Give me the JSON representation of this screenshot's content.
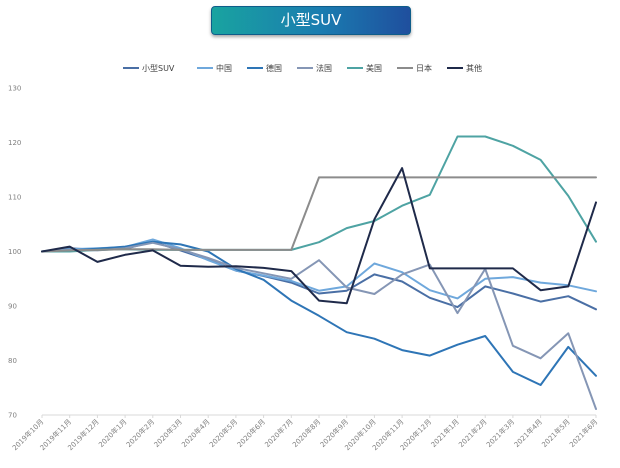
{
  "chart_data": {
    "type": "line",
    "title": "小型SUV",
    "xlabel": "",
    "ylabel": "",
    "ylim": [
      70,
      130
    ],
    "yticks": [
      70,
      80,
      90,
      100,
      110,
      120,
      130
    ],
    "grid": false,
    "legend_position": "top-center",
    "categories": [
      "2019年10月",
      "2019年11月",
      "2019年12月",
      "2020年1月",
      "2020年2月",
      "2020年3月",
      "2020年4月",
      "2020年5月",
      "2020年6月",
      "2020年7月",
      "2020年8月",
      "2020年9月",
      "2020年10月",
      "2020年11月",
      "2020年12月",
      "2021年1月",
      "2021年2月",
      "2021年3月",
      "2021年4月",
      "2021年5月",
      "2021年6月"
    ],
    "series": [
      {
        "name": "小型SUV",
        "color": "#4a6fa5",
        "values": [
          100,
          100.6,
          100.3,
          100.5,
          101.8,
          100.2,
          98.5,
          96.5,
          95.5,
          94.3,
          92.3,
          92.8,
          95.8,
          94.5,
          91.5,
          89.8,
          93.6,
          92.3,
          90.8,
          91.8,
          89.4
        ]
      },
      {
        "name": "中国",
        "color": "#6fa8dc",
        "values": [
          100,
          100.4,
          100.6,
          100.8,
          102.2,
          100.6,
          98.4,
          96.5,
          95.6,
          94.6,
          92.8,
          93.6,
          97.8,
          96.2,
          92.9,
          91.4,
          95.0,
          95.3,
          94.3,
          93.8,
          92.7
        ]
      },
      {
        "name": "德国",
        "color": "#2e75b6",
        "values": [
          100,
          100.2,
          100.5,
          100.9,
          101.8,
          101.3,
          100.0,
          96.8,
          94.8,
          91.0,
          88.2,
          85.2,
          84.0,
          81.9,
          80.9,
          82.9,
          84.5,
          77.9,
          75.5,
          82.5,
          77.2
        ]
      },
      {
        "name": "法国",
        "color": "#8596b5",
        "values": [
          100,
          100.3,
          100.2,
          100.6,
          101.6,
          100.4,
          98.8,
          97.0,
          96.0,
          95.0,
          98.4,
          93.4,
          92.2,
          95.8,
          97.6,
          88.7,
          96.8,
          82.7,
          80.4,
          85.0,
          71.1
        ]
      },
      {
        "name": "美国",
        "color": "#4ea3a3",
        "values": [
          100,
          100,
          100.3,
          100.4,
          100.3,
          100.3,
          100.3,
          100.3,
          100.3,
          100.3,
          101.7,
          104.3,
          105.6,
          108.4,
          110.4,
          121.1,
          121.1,
          119.4,
          116.8,
          110.2,
          101.8
        ]
      },
      {
        "name": "日本",
        "color": "#8c8c8c",
        "values": [
          100,
          100.2,
          100.3,
          100.4,
          100.4,
          100.3,
          100.3,
          100.3,
          100.3,
          100.3,
          113.6,
          113.6,
          113.6,
          113.6,
          113.6,
          113.6,
          113.6,
          113.6,
          113.6,
          113.6,
          113.6
        ]
      },
      {
        "name": "其他",
        "color": "#1f2a4a",
        "values": [
          100,
          100.9,
          98.1,
          99.4,
          100.2,
          97.4,
          97.2,
          97.3,
          97.0,
          96.4,
          91.0,
          90.5,
          105.9,
          115.3,
          96.9,
          96.9,
          96.9,
          96.9,
          92.9,
          93.6,
          109.0
        ]
      }
    ]
  }
}
